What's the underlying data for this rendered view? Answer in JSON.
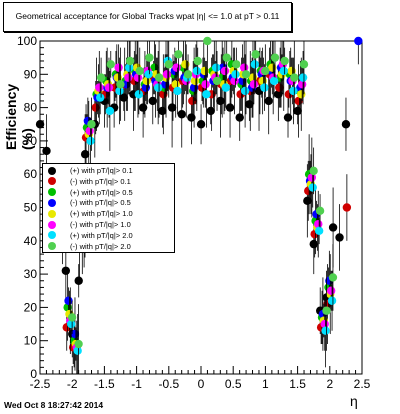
{
  "title": "Geometrical acceptance for Global Tracks wpat |η| <= 1.0 at pT > 0.11",
  "timestamp": "Wed Oct  8 18:27:42 2014",
  "chart_data": {
    "type": "scatter",
    "xlabel": "η",
    "ylabel": "Efficiency (%)",
    "xlim": [
      -2.5,
      2.5
    ],
    "ylim": [
      0,
      100
    ],
    "x_ticks": [
      "-2.5",
      "-2",
      "-1.5",
      "-1",
      "-0.5",
      "0",
      "0.5",
      "1",
      "1.5",
      "2",
      "2.5"
    ],
    "y_ticks": [
      "0",
      "10",
      "20",
      "30",
      "40",
      "50",
      "60",
      "70",
      "80",
      "90",
      "100"
    ],
    "legend_position": "left-middle",
    "series": [
      {
        "name": "(+) with pT/|q|> 0.1",
        "color": "#000000",
        "x": [
          -2.45,
          -2.35,
          -2.05,
          -1.95,
          -1.85,
          -1.75,
          -1.6,
          -1.45,
          -1.3,
          -1.15,
          -1.0,
          -0.85,
          -0.7,
          -0.55,
          -0.4,
          -0.25,
          -0.1,
          0.05,
          0.2,
          0.35,
          0.5,
          0.65,
          0.8,
          0.95,
          1.1,
          1.25,
          1.4,
          1.55,
          1.7,
          1.8,
          1.9,
          2.0,
          2.1,
          2.2,
          2.3
        ],
        "y": [
          75,
          67,
          31,
          12,
          28,
          66,
          75,
          82,
          80,
          83,
          84,
          80,
          82,
          79,
          80,
          78,
          77,
          75,
          79,
          82,
          80,
          77,
          81,
          85,
          82,
          84,
          77,
          79,
          52,
          39,
          19,
          23,
          44,
          41,
          75
        ]
      },
      {
        "name": "(-) with pT/|q|> 0.1",
        "color": "#d00000",
        "x": [
          -2.05,
          -1.95,
          -1.85,
          -1.75,
          -1.6,
          -1.45,
          -1.3,
          -1.15,
          -1.0,
          -0.85,
          -0.7,
          -0.55,
          -0.4,
          -0.25,
          -0.1,
          0.05,
          0.2,
          0.35,
          0.5,
          0.65,
          0.8,
          0.95,
          1.1,
          1.25,
          1.4,
          1.55,
          1.7,
          1.8,
          1.9,
          2.0,
          2.3
        ],
        "y": [
          14,
          8,
          40,
          71,
          80,
          84,
          86,
          87,
          88,
          85,
          89,
          84,
          86,
          88,
          82,
          86,
          84,
          87,
          88,
          84,
          85,
          88,
          90,
          86,
          84,
          82,
          55,
          42,
          14,
          21,
          50
        ]
      },
      {
        "name": "(+) with pT/|q|> 0.5",
        "color": "#00c000",
        "x": [
          -2.05,
          -1.95,
          -1.85,
          -1.75,
          -1.6,
          -1.45,
          -1.3,
          -1.15,
          -1.0,
          -0.85,
          -0.7,
          -0.55,
          -0.4,
          -0.25,
          -0.1,
          0.05,
          0.2,
          0.35,
          0.5,
          0.65,
          0.8,
          0.95,
          1.1,
          1.25,
          1.4,
          1.55,
          1.7,
          1.8,
          1.9,
          2.0
        ],
        "y": [
          20,
          10,
          44,
          74,
          84,
          88,
          90,
          88,
          91,
          87,
          92,
          86,
          90,
          92,
          85,
          88,
          91,
          89,
          93,
          87,
          88,
          91,
          93,
          89,
          90,
          85,
          60,
          46,
          17,
          26
        ]
      },
      {
        "name": "(-) with pT/|q|> 0.5",
        "color": "#0000ff",
        "x": [
          -2.05,
          -1.95,
          -1.85,
          -1.75,
          -1.6,
          -1.45,
          -1.3,
          -1.15,
          -1.0,
          -0.85,
          -0.7,
          -0.55,
          -0.4,
          -0.25,
          -0.1,
          0.05,
          0.2,
          0.35,
          0.5,
          0.65,
          0.8,
          0.95,
          1.1,
          1.25,
          1.4,
          1.55,
          1.7,
          1.8,
          1.9,
          2.0,
          2.45
        ],
        "y": [
          22,
          12,
          46,
          76,
          83,
          86,
          89,
          87,
          90,
          86,
          88,
          87,
          91,
          89,
          86,
          90,
          88,
          92,
          89,
          88,
          86,
          90,
          91,
          92,
          88,
          86,
          58,
          48,
          18,
          28,
          100
        ]
      },
      {
        "name": "(+) with pT/|q|> 1.0",
        "color": "#e8e800",
        "x": [
          -2.05,
          -1.95,
          -1.85,
          -1.75,
          -1.6,
          -1.45,
          -1.3,
          -1.15,
          -1.0,
          -0.85,
          -0.7,
          -0.55,
          -0.4,
          -0.25,
          -0.1,
          0.05,
          0.2,
          0.35,
          0.5,
          0.65,
          0.8,
          0.95,
          1.1,
          1.25,
          1.4,
          1.55,
          1.7,
          1.8,
          1.9,
          2.0
        ],
        "y": [
          18,
          9,
          42,
          72,
          85,
          87,
          89,
          90,
          92,
          88,
          90,
          89,
          87,
          93,
          88,
          91,
          90,
          87,
          91,
          90,
          89,
          88,
          92,
          90,
          91,
          84,
          57,
          44,
          16,
          24
        ]
      },
      {
        "name": "(-) with pT/|q|> 1.0",
        "color": "#ff00ff",
        "x": [
          -2.05,
          -1.95,
          -1.85,
          -1.75,
          -1.6,
          -1.45,
          -1.3,
          -1.15,
          -1.0,
          -0.85,
          -0.7,
          -0.55,
          -0.4,
          -0.25,
          -0.1,
          0.05,
          0.2,
          0.35,
          0.5,
          0.65,
          0.8,
          0.95,
          1.1,
          1.25,
          1.4,
          1.55,
          1.7,
          1.8,
          1.9,
          2.0
        ],
        "y": [
          16,
          8,
          43,
          73,
          86,
          86,
          92,
          89,
          89,
          91,
          87,
          90,
          92,
          88,
          90,
          87,
          89,
          91,
          88,
          92,
          87,
          91,
          89,
          93,
          88,
          87,
          59,
          45,
          15,
          25
        ]
      },
      {
        "name": "(+) with pT/|q|> 2.0",
        "color": "#00e0ff",
        "x": [
          -2.05,
          -1.95,
          -1.85,
          -1.75,
          -1.6,
          -1.45,
          -1.3,
          -1.15,
          -1.0,
          -0.85,
          -0.7,
          -0.55,
          -0.4,
          -0.25,
          -0.1,
          0.05,
          0.2,
          0.35,
          0.5,
          0.65,
          0.8,
          0.95,
          1.1,
          1.25,
          1.4,
          1.55,
          1.7,
          1.8,
          1.9,
          2.0
        ],
        "y": [
          15,
          7,
          41,
          70,
          83,
          79,
          85,
          92,
          84,
          90,
          86,
          94,
          85,
          89,
          91,
          84,
          92,
          86,
          90,
          85,
          93,
          86,
          88,
          91,
          85,
          89,
          56,
          43,
          13,
          22
        ]
      },
      {
        "name": "(-) with pT/|q|> 2.0",
        "color": "#50d050",
        "x": [
          -2.2,
          -2.05,
          -1.95,
          -1.85,
          -1.75,
          -1.6,
          -1.45,
          -1.3,
          -1.15,
          -1.0,
          -0.85,
          -0.7,
          -0.55,
          -0.4,
          -0.25,
          -0.1,
          0.05,
          0.2,
          0.35,
          0.5,
          0.65,
          0.8,
          0.95,
          1.1,
          1.25,
          1.4,
          1.55,
          1.7,
          1.8,
          1.9,
          2.0
        ],
        "y": [
          40,
          17,
          9,
          45,
          75,
          89,
          93,
          87,
          94,
          91,
          95,
          89,
          93,
          96,
          90,
          94,
          100,
          88,
          95,
          93,
          90,
          96,
          91,
          95,
          94,
          89,
          93,
          61,
          49,
          19,
          29
        ]
      }
    ]
  }
}
